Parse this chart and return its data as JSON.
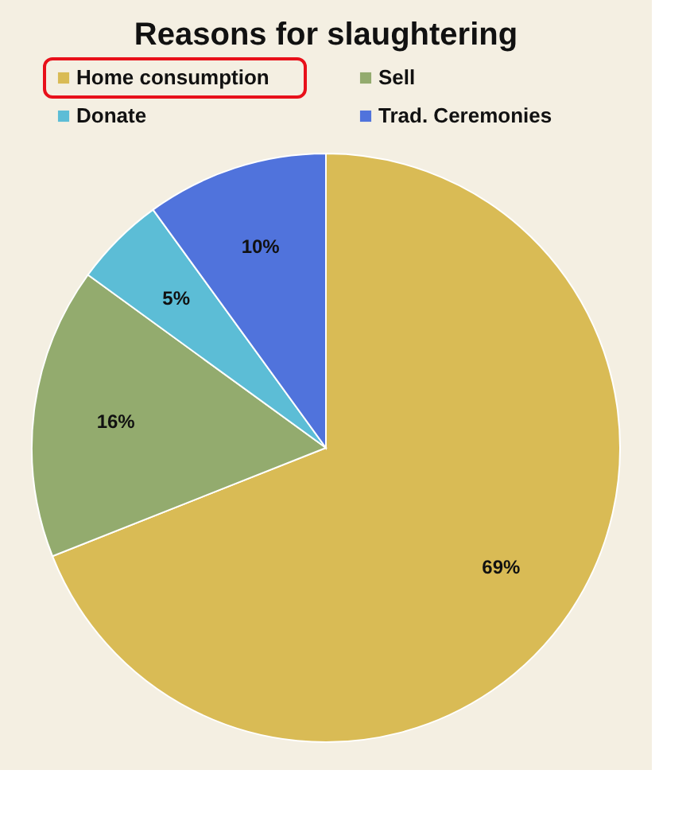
{
  "chart_data": {
    "type": "pie",
    "title": "Reasons for slaughtering",
    "categories": [
      "Home consumption",
      "Sell",
      "Donate",
      "Trad. Ceremonies"
    ],
    "values": [
      69,
      16,
      5,
      10
    ],
    "value_labels": [
      "69%",
      "16%",
      "5%",
      "10%"
    ],
    "colors": [
      "#d9bb55",
      "#93ab6e",
      "#5cbdd6",
      "#5073dc"
    ],
    "legend": "top"
  }
}
